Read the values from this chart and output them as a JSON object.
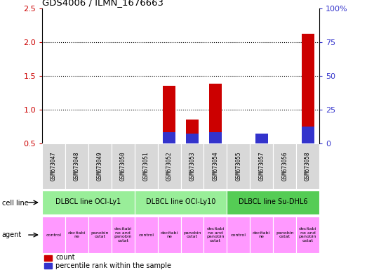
{
  "title": "GDS4006 / ILMN_1676663",
  "samples": [
    "GSM673047",
    "GSM673048",
    "GSM673049",
    "GSM673050",
    "GSM673051",
    "GSM673052",
    "GSM673053",
    "GSM673054",
    "GSM673055",
    "GSM673057",
    "GSM673056",
    "GSM673058"
  ],
  "count_values": [
    0,
    0,
    0,
    0,
    0,
    1.35,
    0.85,
    1.38,
    0,
    0,
    0,
    2.12
  ],
  "percentile_values_pct": [
    0,
    0,
    0,
    0,
    0,
    8,
    7,
    8,
    0,
    7,
    0,
    12
  ],
  "count_bar_color": "#cc0000",
  "percentile_bar_color": "#3333cc",
  "ylim_left": [
    0.5,
    2.5
  ],
  "ylim_right": [
    0,
    100
  ],
  "yticks_left": [
    0.5,
    1.0,
    1.5,
    2.0,
    2.5
  ],
  "yticks_right": [
    0,
    25,
    50,
    75,
    100
  ],
  "ytick_labels_right": [
    "0",
    "25",
    "50",
    "75",
    "100%"
  ],
  "cell_line_groups": [
    {
      "label": "DLBCL line OCI-Ly1",
      "start": 0,
      "end": 4,
      "color": "#99ee99"
    },
    {
      "label": "DLBCL line OCI-Ly10",
      "start": 4,
      "end": 8,
      "color": "#99ee99"
    },
    {
      "label": "DLBCL line Su-DHL6",
      "start": 8,
      "end": 12,
      "color": "#55cc55"
    }
  ],
  "agent_labels": [
    "control",
    "decitabi\nne",
    "panobin\nostat",
    "decitabi\nne and\npanobin\nostat",
    "control",
    "decitabi\nne",
    "panobin\nostat",
    "decitabi\nne and\npanobin\nostat",
    "control",
    "decitabi\nne",
    "panobin\nostat",
    "decitabi\nne and\npanobin\nostat"
  ],
  "agent_bg_color": "#ff99ff",
  "cell_line_label": "cell line",
  "agent_label": "agent",
  "legend_count": "count",
  "legend_percentile": "percentile rank within the sample",
  "tick_color_left": "#cc0000",
  "tick_color_right": "#3333cc",
  "bar_bottom": 0.5,
  "sample_bg_color": "#d8d8d8",
  "fig_width": 5.23,
  "fig_height": 3.84,
  "dpi": 100
}
